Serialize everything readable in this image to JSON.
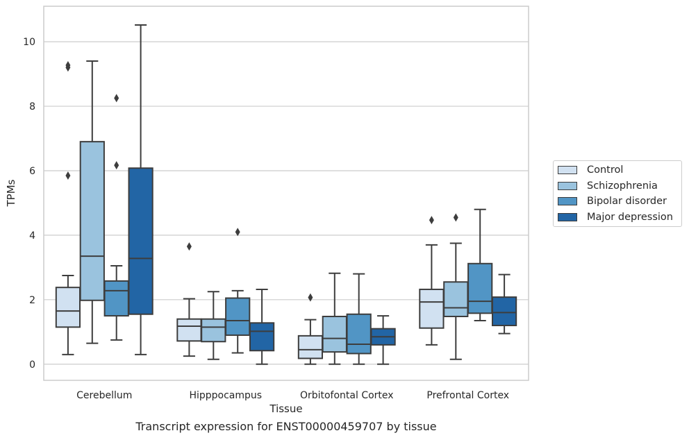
{
  "chart_data": {
    "type": "box",
    "title": "",
    "xlabel": "Tissue",
    "ylabel": "TPMs",
    "caption": "Transcript expression for ENST00000459707 by tissue",
    "categories": [
      "Cerebellum",
      "Hipppocampus",
      "Orbitofontal Cortex",
      "Prefrontal Cortex"
    ],
    "yticks": [
      "0",
      "2",
      "4",
      "6",
      "8",
      "10"
    ],
    "ylim": [
      -0.5,
      11.1
    ],
    "grid": true,
    "legend_position": "right",
    "series": [
      {
        "name": "Control",
        "color": "#d1e1f1",
        "boxes": [
          {
            "whisker_low": 0.3,
            "q1": 1.15,
            "median": 1.65,
            "q3": 2.38,
            "whisker_high": 2.75,
            "outliers": [
              5.85,
              9.2,
              9.27
            ]
          },
          {
            "whisker_low": 0.25,
            "q1": 0.72,
            "median": 1.18,
            "q3": 1.4,
            "whisker_high": 2.03,
            "outliers": [
              3.65
            ]
          },
          {
            "whisker_low": 0.0,
            "q1": 0.18,
            "median": 0.45,
            "q3": 0.88,
            "whisker_high": 1.38,
            "outliers": [
              2.07
            ]
          },
          {
            "whisker_low": 0.6,
            "q1": 1.12,
            "median": 1.93,
            "q3": 2.32,
            "whisker_high": 3.7,
            "outliers": [
              4.47
            ]
          }
        ]
      },
      {
        "name": "Schizophrenia",
        "color": "#9ac3de",
        "boxes": [
          {
            "whisker_low": 0.65,
            "q1": 1.98,
            "median": 3.35,
            "q3": 6.9,
            "whisker_high": 9.4,
            "outliers": []
          },
          {
            "whisker_low": 0.15,
            "q1": 0.7,
            "median": 1.15,
            "q3": 1.4,
            "whisker_high": 2.25,
            "outliers": []
          },
          {
            "whisker_low": 0.0,
            "q1": 0.38,
            "median": 0.8,
            "q3": 1.48,
            "whisker_high": 2.82,
            "outliers": []
          },
          {
            "whisker_low": 0.15,
            "q1": 1.48,
            "median": 1.75,
            "q3": 2.55,
            "whisker_high": 3.75,
            "outliers": [
              4.55
            ]
          }
        ]
      },
      {
        "name": "Bipolar disorder",
        "color": "#5195c5",
        "boxes": [
          {
            "whisker_low": 0.75,
            "q1": 1.5,
            "median": 2.28,
            "q3": 2.58,
            "whisker_high": 3.05,
            "outliers": [
              6.17,
              8.25
            ]
          },
          {
            "whisker_low": 0.35,
            "q1": 0.9,
            "median": 1.35,
            "q3": 2.05,
            "whisker_high": 2.28,
            "outliers": [
              4.1
            ]
          },
          {
            "whisker_low": 0.0,
            "q1": 0.33,
            "median": 0.62,
            "q3": 1.55,
            "whisker_high": 2.8,
            "outliers": []
          },
          {
            "whisker_low": 1.35,
            "q1": 1.58,
            "median": 1.95,
            "q3": 3.12,
            "whisker_high": 4.8,
            "outliers": []
          }
        ]
      },
      {
        "name": "Major depression",
        "color": "#2265a5",
        "boxes": [
          {
            "whisker_low": 0.3,
            "q1": 1.55,
            "median": 3.28,
            "q3": 6.08,
            "whisker_high": 10.52,
            "outliers": []
          },
          {
            "whisker_low": 0.0,
            "q1": 0.42,
            "median": 1.02,
            "q3": 1.28,
            "whisker_high": 2.32,
            "outliers": []
          },
          {
            "whisker_low": 0.0,
            "q1": 0.6,
            "median": 0.85,
            "q3": 1.1,
            "whisker_high": 1.5,
            "outliers": []
          },
          {
            "whisker_low": 0.95,
            "q1": 1.2,
            "median": 1.6,
            "q3": 2.08,
            "whisker_high": 2.78,
            "outliers": []
          }
        ]
      }
    ]
  }
}
